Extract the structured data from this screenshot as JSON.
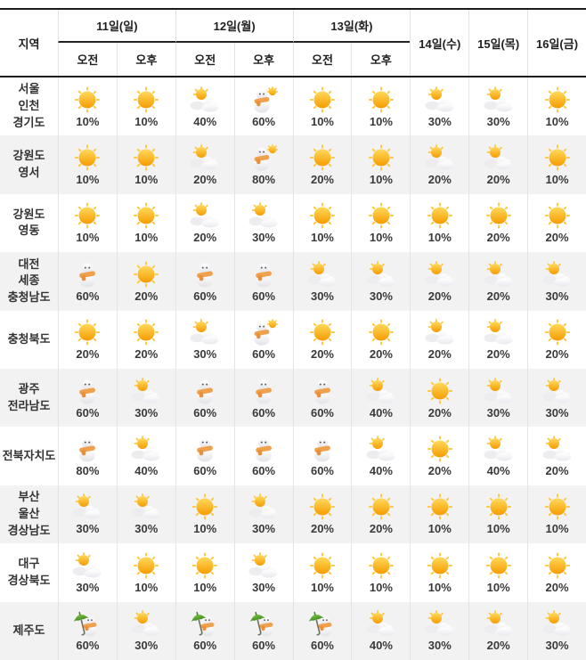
{
  "header": {
    "region": "지역",
    "groups": [
      {
        "label": "11일(일)",
        "am": "오전",
        "pm": "오후"
      },
      {
        "label": "12일(월)",
        "am": "오전",
        "pm": "오후"
      },
      {
        "label": "13일(화)",
        "am": "오전",
        "pm": "오후"
      }
    ],
    "days": [
      "14일(수)",
      "15일(목)",
      "16일(금)"
    ]
  },
  "icons": {
    "sunny": "☀",
    "partly-cloudy": "⛅",
    "snow": "☃",
    "snow-then-sun": "☃☀",
    "rain-or-snow": "☔☃"
  },
  "colors": {
    "sun": "#f59b00",
    "sun_light": "#ffd95c",
    "scarf": "#efa14d",
    "umbrella_green": "#4a9a28",
    "row_alt_bg": "#f2f2f2",
    "line_dark": "#1c1c1c",
    "grid_line": "#e4e4e4",
    "text": "#333333"
  },
  "chart_data": {
    "type": "table",
    "columns": [
      "지역",
      "11일(일) 오전",
      "11일(일) 오후",
      "12일(월) 오전",
      "12일(월) 오후",
      "13일(화) 오전",
      "13일(화) 오후",
      "14일(수)",
      "15일(목)",
      "16일(금)"
    ],
    "value_meaning": "강수확률(%) 및 날씨 아이콘",
    "rows": [
      {
        "region_lines": [
          "서울",
          "인천",
          "경기도"
        ],
        "cells": [
          {
            "icon": "sunny",
            "pct": "10%"
          },
          {
            "icon": "sunny",
            "pct": "10%"
          },
          {
            "icon": "partly-cloudy",
            "pct": "40%"
          },
          {
            "icon": "snow-then-sun",
            "pct": "60%"
          },
          {
            "icon": "sunny",
            "pct": "10%"
          },
          {
            "icon": "sunny",
            "pct": "10%"
          },
          {
            "icon": "partly-cloudy",
            "pct": "30%"
          },
          {
            "icon": "partly-cloudy",
            "pct": "30%"
          },
          {
            "icon": "sunny",
            "pct": "10%"
          }
        ]
      },
      {
        "region_lines": [
          "강원도",
          "영서"
        ],
        "cells": [
          {
            "icon": "sunny",
            "pct": "10%"
          },
          {
            "icon": "sunny",
            "pct": "10%"
          },
          {
            "icon": "partly-cloudy",
            "pct": "20%"
          },
          {
            "icon": "snow-then-sun",
            "pct": "80%"
          },
          {
            "icon": "sunny",
            "pct": "20%"
          },
          {
            "icon": "sunny",
            "pct": "10%"
          },
          {
            "icon": "partly-cloudy",
            "pct": "20%"
          },
          {
            "icon": "partly-cloudy",
            "pct": "20%"
          },
          {
            "icon": "sunny",
            "pct": "10%"
          }
        ]
      },
      {
        "region_lines": [
          "강원도",
          "영동"
        ],
        "cells": [
          {
            "icon": "sunny",
            "pct": "10%"
          },
          {
            "icon": "sunny",
            "pct": "10%"
          },
          {
            "icon": "partly-cloudy",
            "pct": "20%"
          },
          {
            "icon": "partly-cloudy",
            "pct": "30%"
          },
          {
            "icon": "sunny",
            "pct": "10%"
          },
          {
            "icon": "sunny",
            "pct": "10%"
          },
          {
            "icon": "sunny",
            "pct": "10%"
          },
          {
            "icon": "sunny",
            "pct": "20%"
          },
          {
            "icon": "sunny",
            "pct": "20%"
          }
        ]
      },
      {
        "region_lines": [
          "대전",
          "세종",
          "충청남도"
        ],
        "cells": [
          {
            "icon": "snow",
            "pct": "60%"
          },
          {
            "icon": "sunny",
            "pct": "20%"
          },
          {
            "icon": "snow",
            "pct": "60%"
          },
          {
            "icon": "snow",
            "pct": "60%"
          },
          {
            "icon": "partly-cloudy",
            "pct": "30%"
          },
          {
            "icon": "partly-cloudy",
            "pct": "30%"
          },
          {
            "icon": "partly-cloudy",
            "pct": "20%"
          },
          {
            "icon": "partly-cloudy",
            "pct": "20%"
          },
          {
            "icon": "partly-cloudy",
            "pct": "30%"
          }
        ]
      },
      {
        "region_lines": [
          "충청북도"
        ],
        "cells": [
          {
            "icon": "sunny",
            "pct": "20%"
          },
          {
            "icon": "sunny",
            "pct": "20%"
          },
          {
            "icon": "partly-cloudy",
            "pct": "30%"
          },
          {
            "icon": "snow-then-sun",
            "pct": "60%"
          },
          {
            "icon": "sunny",
            "pct": "20%"
          },
          {
            "icon": "sunny",
            "pct": "20%"
          },
          {
            "icon": "partly-cloudy",
            "pct": "20%"
          },
          {
            "icon": "partly-cloudy",
            "pct": "20%"
          },
          {
            "icon": "sunny",
            "pct": "20%"
          }
        ]
      },
      {
        "region_lines": [
          "광주",
          "전라남도"
        ],
        "cells": [
          {
            "icon": "snow",
            "pct": "60%"
          },
          {
            "icon": "partly-cloudy",
            "pct": "30%"
          },
          {
            "icon": "snow",
            "pct": "60%"
          },
          {
            "icon": "snow",
            "pct": "60%"
          },
          {
            "icon": "snow",
            "pct": "60%"
          },
          {
            "icon": "partly-cloudy",
            "pct": "40%"
          },
          {
            "icon": "sunny",
            "pct": "20%"
          },
          {
            "icon": "partly-cloudy",
            "pct": "30%"
          },
          {
            "icon": "partly-cloudy",
            "pct": "30%"
          }
        ]
      },
      {
        "region_lines": [
          "전북자치도"
        ],
        "cells": [
          {
            "icon": "snow",
            "pct": "80%"
          },
          {
            "icon": "partly-cloudy",
            "pct": "40%"
          },
          {
            "icon": "snow",
            "pct": "60%"
          },
          {
            "icon": "snow",
            "pct": "60%"
          },
          {
            "icon": "snow",
            "pct": "60%"
          },
          {
            "icon": "partly-cloudy",
            "pct": "40%"
          },
          {
            "icon": "sunny",
            "pct": "20%"
          },
          {
            "icon": "partly-cloudy",
            "pct": "40%"
          },
          {
            "icon": "partly-cloudy",
            "pct": "20%"
          }
        ]
      },
      {
        "region_lines": [
          "부산",
          "울산",
          "경상남도"
        ],
        "cells": [
          {
            "icon": "partly-cloudy",
            "pct": "30%"
          },
          {
            "icon": "partly-cloudy",
            "pct": "30%"
          },
          {
            "icon": "sunny",
            "pct": "10%"
          },
          {
            "icon": "partly-cloudy",
            "pct": "30%"
          },
          {
            "icon": "sunny",
            "pct": "20%"
          },
          {
            "icon": "sunny",
            "pct": "20%"
          },
          {
            "icon": "sunny",
            "pct": "10%"
          },
          {
            "icon": "sunny",
            "pct": "10%"
          },
          {
            "icon": "sunny",
            "pct": "10%"
          }
        ]
      },
      {
        "region_lines": [
          "대구",
          "경상북도"
        ],
        "cells": [
          {
            "icon": "partly-cloudy",
            "pct": "30%"
          },
          {
            "icon": "sunny",
            "pct": "10%"
          },
          {
            "icon": "sunny",
            "pct": "10%"
          },
          {
            "icon": "partly-cloudy",
            "pct": "30%"
          },
          {
            "icon": "sunny",
            "pct": "10%"
          },
          {
            "icon": "sunny",
            "pct": "10%"
          },
          {
            "icon": "sunny",
            "pct": "10%"
          },
          {
            "icon": "sunny",
            "pct": "10%"
          },
          {
            "icon": "sunny",
            "pct": "20%"
          }
        ]
      },
      {
        "region_lines": [
          "제주도"
        ],
        "cells": [
          {
            "icon": "rain-or-snow",
            "pct": "60%"
          },
          {
            "icon": "partly-cloudy",
            "pct": "30%"
          },
          {
            "icon": "rain-or-snow",
            "pct": "60%"
          },
          {
            "icon": "rain-or-snow",
            "pct": "60%"
          },
          {
            "icon": "rain-or-snow",
            "pct": "60%"
          },
          {
            "icon": "partly-cloudy",
            "pct": "40%"
          },
          {
            "icon": "partly-cloudy",
            "pct": "30%"
          },
          {
            "icon": "partly-cloudy",
            "pct": "20%"
          },
          {
            "icon": "partly-cloudy",
            "pct": "30%"
          }
        ]
      }
    ]
  }
}
